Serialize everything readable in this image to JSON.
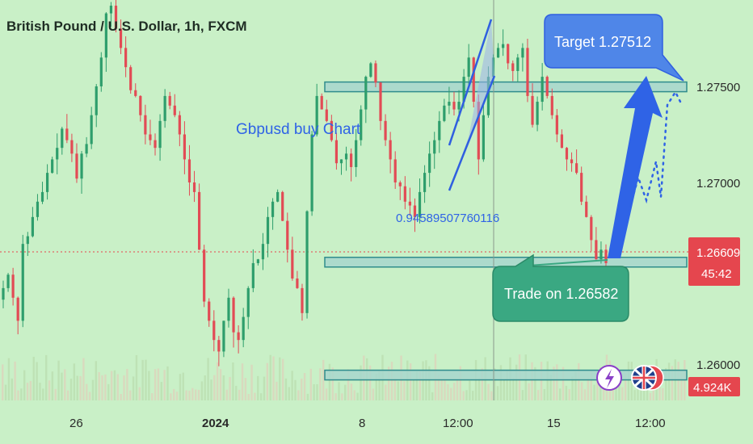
{
  "header": {
    "title": "British Pound / U.S. Dollar, 1h, FXCM"
  },
  "colors": {
    "background": "#c9f0c7",
    "up": "#2e9e6c",
    "down": "#e24b55",
    "zone_fill": "#a7d6cc",
    "zone_stroke": "#2f8c8c",
    "annotation_blue": "#2f5fe0",
    "target_box": "#4f86e8",
    "trade_box": "#3aa882",
    "current_price_bg": "#e5464e",
    "volume_bg": "#e5464e"
  },
  "annotations": {
    "chart_label": "Gbpusd buy Chart",
    "ratio_text": "0.94589507760116",
    "target_callout": "Target 1.27512",
    "trade_callout": "Trade on 1.26582"
  },
  "price_axis": {
    "ticks": [
      "1.27500",
      "1.27000",
      "1.26000"
    ],
    "current_price": "1.26609",
    "countdown": "45:42",
    "volume_label": "4.924K"
  },
  "time_axis": {
    "labels": [
      "26",
      "2024",
      "8",
      "12:00",
      "15",
      "12:00"
    ]
  },
  "chart_data": {
    "type": "candlestick",
    "symbol": "GBPUSD",
    "timeframe": "1h",
    "ylim": [
      1.2582,
      1.2792
    ],
    "closes": [
      1.2645,
      1.2652,
      1.264,
      1.2628,
      1.2668,
      1.2672,
      1.2682,
      1.269,
      1.2695,
      1.2705,
      1.2712,
      1.2718,
      1.2728,
      1.2722,
      1.2715,
      1.2702,
      1.2715,
      1.272,
      1.2735,
      1.275,
      1.2765,
      1.2788,
      1.2792,
      1.278,
      1.277,
      1.276,
      1.2748,
      1.2745,
      1.2735,
      1.2725,
      1.2722,
      1.2718,
      1.2732,
      1.2745,
      1.274,
      1.2735,
      1.2725,
      1.2712,
      1.27,
      1.2695,
      1.2665,
      1.2638,
      1.2628,
      1.2618,
      1.2612,
      1.2628,
      1.264,
      1.2622,
      1.2618,
      1.263,
      1.2645,
      1.2658,
      1.266,
      1.2668,
      1.2682,
      1.269,
      1.2695,
      1.268,
      1.2665,
      1.265,
      1.2645,
      1.2632,
      1.2685,
      1.2725,
      1.2745,
      1.2738,
      1.2732,
      1.2722,
      1.271,
      1.2712,
      1.2715,
      1.2708,
      1.2722,
      1.2738,
      1.2755,
      1.2762,
      1.2752,
      1.2732,
      1.2722,
      1.2712,
      1.27,
      1.2698,
      1.269,
      1.2688,
      1.2682,
      1.2695,
      1.2705,
      1.2715,
      1.2722,
      1.2732,
      1.274,
      1.2742,
      1.2738,
      1.2742,
      1.2755,
      1.2765,
      1.2742,
      1.2712,
      1.2735,
      1.2755,
      1.2765,
      1.277,
      1.2772,
      1.2762,
      1.2758,
      1.2765,
      1.277,
      1.2745,
      1.273,
      1.2742,
      1.2755,
      1.2745,
      1.2735,
      1.2725,
      1.2718,
      1.2712,
      1.271,
      1.2705,
      1.269,
      1.2682,
      1.267,
      1.266,
      1.2665,
      1.2658
    ],
    "zones": [
      {
        "low": 1.2748,
        "high": 1.27515
      },
      {
        "low": 1.2656,
        "high": 1.2661
      },
      {
        "low": 1.25985,
        "high": 1.2601
      }
    ],
    "target": 1.27512,
    "trade_entry": 1.26582,
    "current_price": 1.26609,
    "volume_last": "4.924K"
  }
}
